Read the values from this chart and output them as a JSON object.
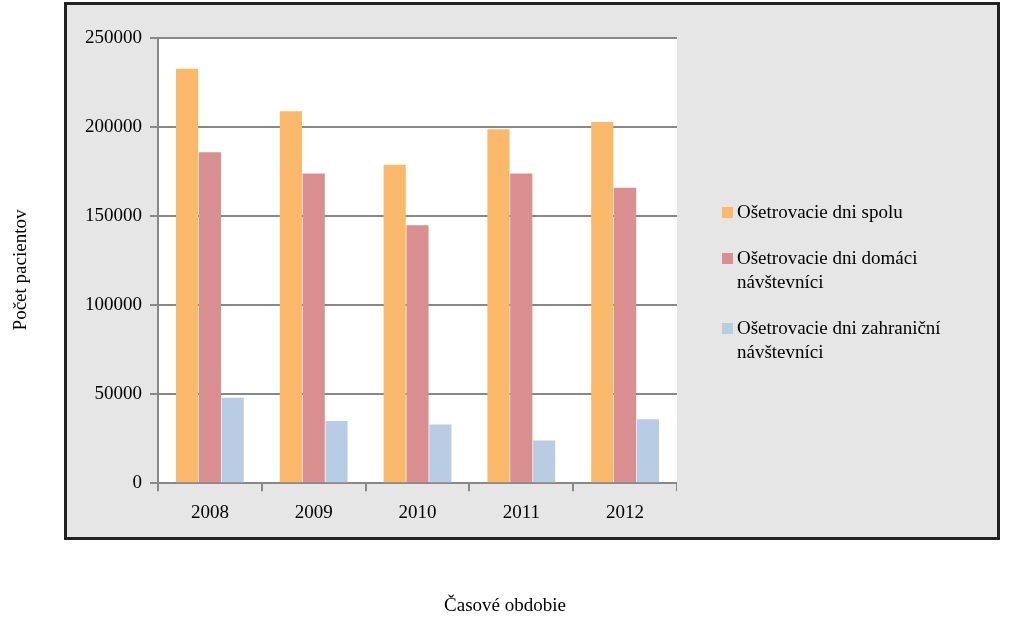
{
  "chart_data": {
    "type": "bar",
    "xlabel": "Časové obdobie",
    "ylabel": "Počet pacientov",
    "categories": [
      "2008",
      "2009",
      "2010",
      "2011",
      "2012"
    ],
    "series": [
      {
        "name": "Ošetrovacie dni spolu",
        "color": "#f9b86a",
        "values": [
          233000,
          209000,
          179000,
          199000,
          203000
        ]
      },
      {
        "name": "Ošetrovacie dni domáci návštevníci",
        "color": "#d98f8f",
        "values": [
          186000,
          174000,
          145000,
          174000,
          166000
        ]
      },
      {
        "name": "Ošetrovacie dni zahraniční návštevníci",
        "color": "#b8cce4",
        "values": [
          48000,
          35000,
          33000,
          24000,
          36000
        ]
      }
    ],
    "ylim": [
      0,
      250000
    ],
    "yticks": [
      0,
      50000,
      100000,
      150000,
      200000,
      250000
    ],
    "grid": "y",
    "legend": "right"
  }
}
